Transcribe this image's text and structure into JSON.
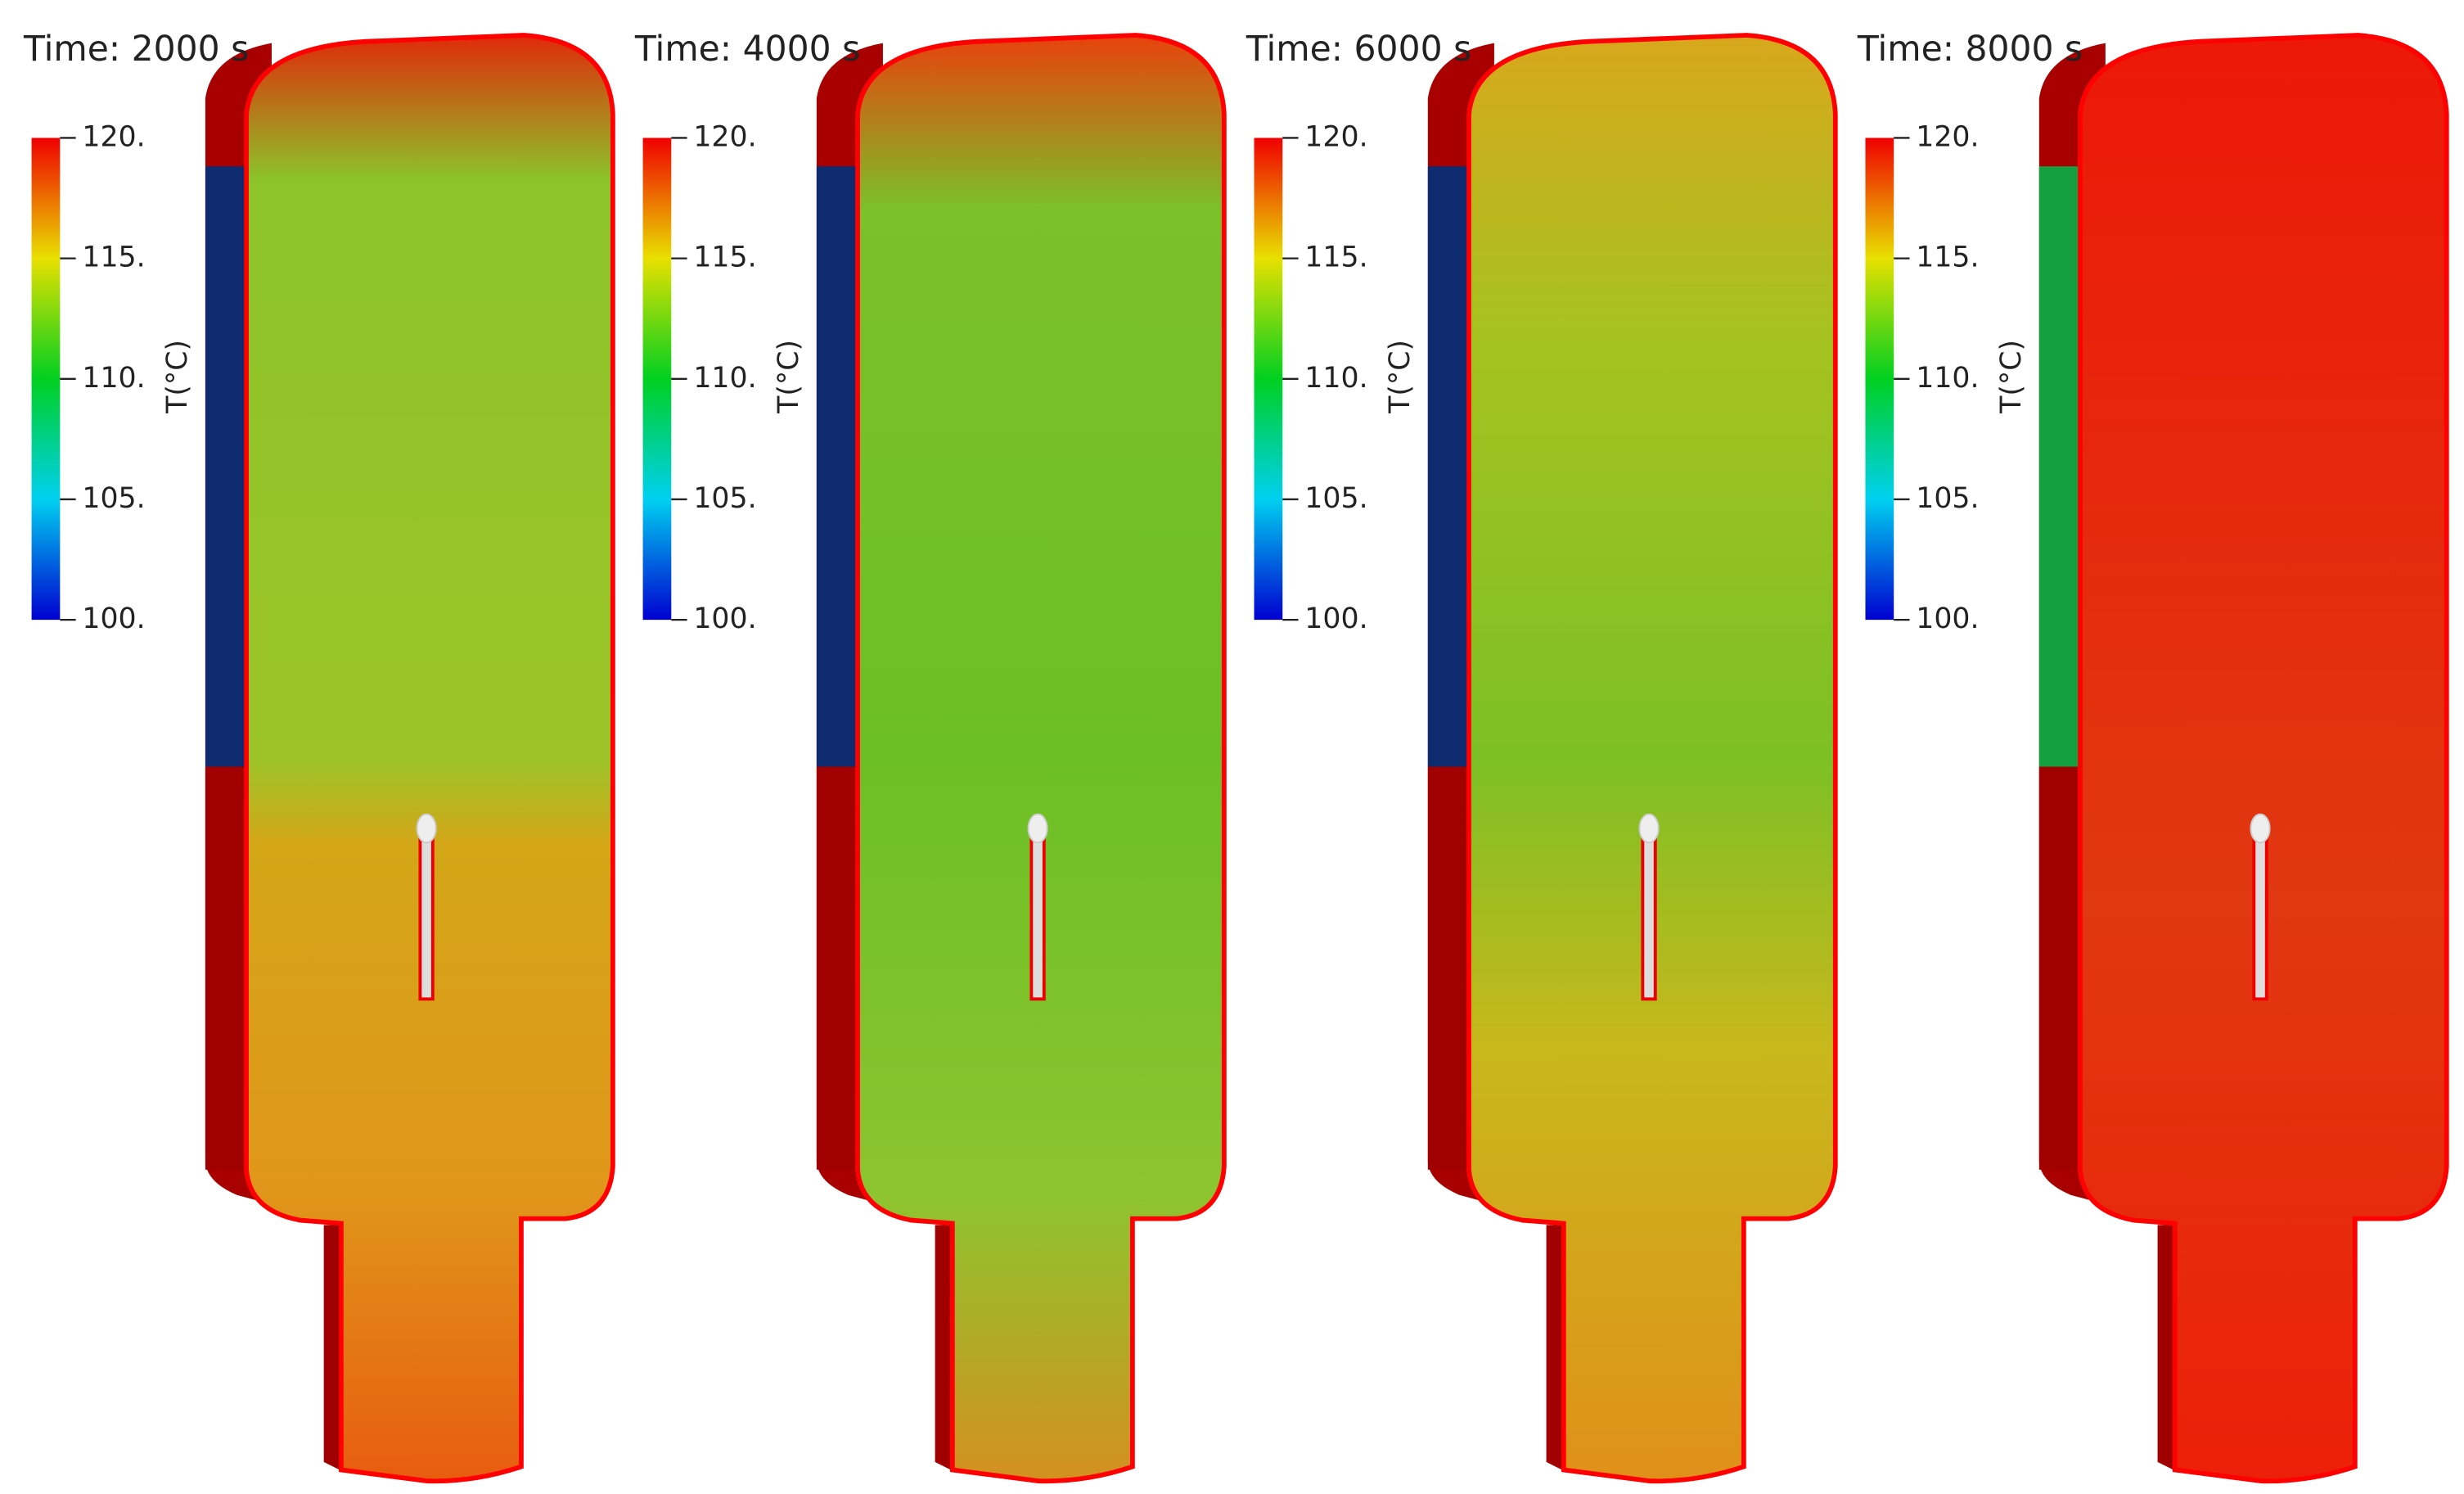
{
  "panels": [
    {
      "title": "Time:  2000 s"
    },
    {
      "title": "Time:  4000 s"
    },
    {
      "title": "Time:  6000 s"
    },
    {
      "title": "Time:  8000 s"
    }
  ],
  "colorbar": {
    "label": "T(°C)",
    "range": [
      100,
      120
    ],
    "ticks": [
      {
        "value": 120,
        "label": "120."
      },
      {
        "value": 115,
        "label": "115."
      },
      {
        "value": 110,
        "label": "110."
      },
      {
        "value": 105,
        "label": "105."
      },
      {
        "value": 100,
        "label": "100."
      }
    ]
  }
}
